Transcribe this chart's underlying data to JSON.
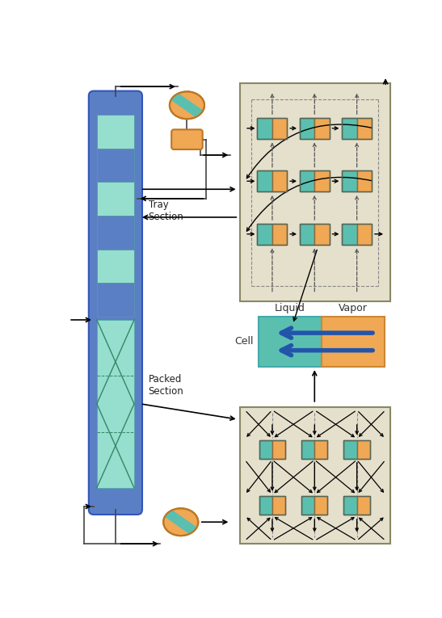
{
  "bg_color": "#ffffff",
  "beige_bg": "#e5e0cc",
  "teal_color": "#5bbfb0",
  "orange_color": "#f0a855",
  "blue_col_color": "#5b7fc4",
  "blue_tray_color": "#88bbdd",
  "blue_arr_color": "#2255aa",
  "packed_fill": "#96dece",
  "tray_fill": "#96dece",
  "cell_label": "Cell",
  "liquid_label": "Liquid",
  "vapor_label": "Vapor",
  "tray_section_label": "Tray\nSection",
  "packed_section_label": "Packed\nSection"
}
